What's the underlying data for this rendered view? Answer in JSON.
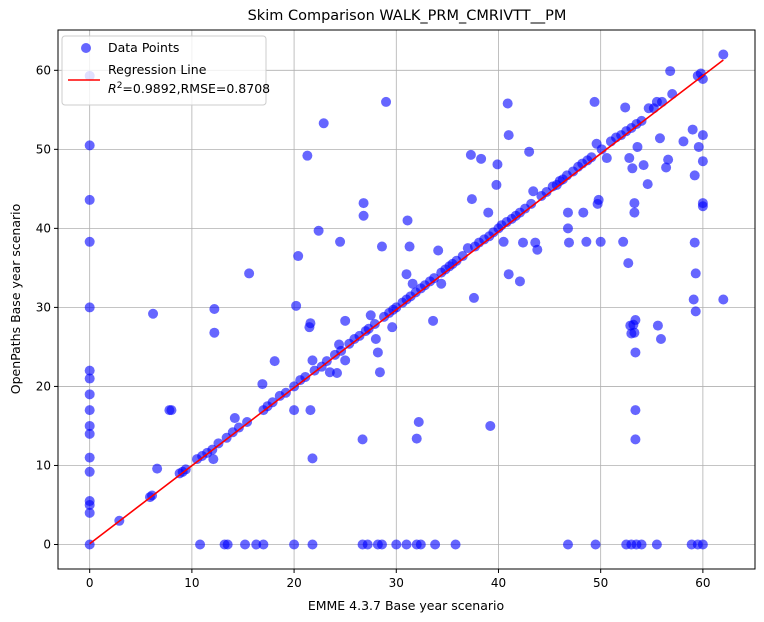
{
  "chart_data": {
    "type": "scatter",
    "title": "Skim Comparison WALK_PRM_CMRIVTT__PM",
    "xlabel": "EMME 4.3.7 Base year scenario",
    "ylabel": "OpenPaths Base year scenario",
    "xlim": [
      -3.1,
      65.1
    ],
    "ylim": [
      -3.1,
      65.1
    ],
    "xticks": [
      0,
      10,
      20,
      30,
      40,
      50,
      60
    ],
    "yticks": [
      0,
      10,
      20,
      30,
      40,
      50,
      60
    ],
    "grid": true,
    "legend": {
      "placement": "top-left",
      "entries": [
        "Data Points",
        "Regression Line"
      ],
      "stats_prefix": "R",
      "stats_sup": "2",
      "stats_suffix": "=0.9892,RMSE=0.8708"
    },
    "series": [
      {
        "name": "Data Points",
        "kind": "scatter",
        "color": "#0000ff",
        "points": [
          [
            0,
            0
          ],
          [
            0,
            4
          ],
          [
            0,
            5
          ],
          [
            0,
            5.5
          ],
          [
            0,
            9.2
          ],
          [
            0,
            11
          ],
          [
            0,
            14
          ],
          [
            0,
            15
          ],
          [
            0,
            17
          ],
          [
            0,
            19
          ],
          [
            0,
            21
          ],
          [
            0,
            22
          ],
          [
            0,
            30
          ],
          [
            0,
            38.3
          ],
          [
            0,
            43.6
          ],
          [
            0,
            50.5
          ],
          [
            0,
            59.3
          ],
          [
            2.9,
            3
          ],
          [
            5.9,
            6
          ],
          [
            6.1,
            6.2
          ],
          [
            6.2,
            29.2
          ],
          [
            6.6,
            9.6
          ],
          [
            7.8,
            17
          ],
          [
            8,
            17
          ],
          [
            8.8,
            9
          ],
          [
            9.1,
            9.2
          ],
          [
            9.4,
            9.5
          ],
          [
            10.5,
            10.8
          ],
          [
            11,
            11.2
          ],
          [
            11.5,
            11.6
          ],
          [
            12,
            12
          ],
          [
            12.1,
            10.8
          ],
          [
            12.2,
            26.8
          ],
          [
            12.2,
            29.8
          ],
          [
            12.6,
            12.8
          ],
          [
            13.4,
            13.5
          ],
          [
            14,
            14.2
          ],
          [
            14.2,
            16
          ],
          [
            14.6,
            14.8
          ],
          [
            15.4,
            15.5
          ],
          [
            15.6,
            34.3
          ],
          [
            16.9,
            20.3
          ],
          [
            17,
            17
          ],
          [
            17.4,
            17.5
          ],
          [
            17.9,
            18
          ],
          [
            18.1,
            23.2
          ],
          [
            18.6,
            18.8
          ],
          [
            19.2,
            19.2
          ],
          [
            20,
            17
          ],
          [
            20,
            20
          ],
          [
            20.2,
            30.2
          ],
          [
            20.4,
            36.5
          ],
          [
            20.6,
            20.8
          ],
          [
            21.1,
            21.2
          ],
          [
            21.3,
            49.2
          ],
          [
            21.5,
            27.5
          ],
          [
            21.6,
            28
          ],
          [
            21.6,
            17
          ],
          [
            21.8,
            23.3
          ],
          [
            21.8,
            10.9
          ],
          [
            22,
            22
          ],
          [
            22.4,
            39.7
          ],
          [
            22.7,
            22.5
          ],
          [
            22.9,
            53.3
          ],
          [
            23.2,
            23.2
          ],
          [
            23.5,
            21.8
          ],
          [
            24,
            24
          ],
          [
            24.2,
            21.7
          ],
          [
            24.4,
            25.3
          ],
          [
            24.5,
            38.3
          ],
          [
            24.6,
            24.5
          ],
          [
            25,
            23.3
          ],
          [
            25,
            28.3
          ],
          [
            25.4,
            25.4
          ],
          [
            25.9,
            26
          ],
          [
            26.4,
            26.4
          ],
          [
            26.7,
            13.3
          ],
          [
            26.8,
            41.6
          ],
          [
            26.8,
            43.2
          ],
          [
            27,
            27
          ],
          [
            27.3,
            27.3
          ],
          [
            27.5,
            29
          ],
          [
            27.9,
            27.9
          ],
          [
            28,
            26
          ],
          [
            28.2,
            24.3
          ],
          [
            28.4,
            21.8
          ],
          [
            28.6,
            37.7
          ],
          [
            28.8,
            28.8
          ],
          [
            29,
            56
          ],
          [
            29.3,
            29.3
          ],
          [
            29.7,
            29.7
          ],
          [
            29.6,
            27.5
          ],
          [
            30,
            30
          ],
          [
            30.6,
            30.6
          ],
          [
            31,
            31
          ],
          [
            31,
            34.2
          ],
          [
            31.1,
            41
          ],
          [
            31.3,
            37.7
          ],
          [
            31.4,
            31.4
          ],
          [
            31.6,
            33
          ],
          [
            31.9,
            31.9
          ],
          [
            32,
            13.4
          ],
          [
            32.2,
            15.5
          ],
          [
            32.4,
            32.4
          ],
          [
            32.8,
            32.8
          ],
          [
            33.3,
            33.3
          ],
          [
            33.6,
            28.3
          ],
          [
            33.7,
            33.7
          ],
          [
            34.1,
            37.2
          ],
          [
            34.4,
            34.4
          ],
          [
            34.8,
            34.8
          ],
          [
            34.4,
            33
          ],
          [
            35.2,
            35.2
          ],
          [
            35.5,
            35.5
          ],
          [
            35.9,
            35.9
          ],
          [
            36.5,
            36.5
          ],
          [
            37,
            37.5
          ],
          [
            37.3,
            49.3
          ],
          [
            37.4,
            43.7
          ],
          [
            37.6,
            31.2
          ],
          [
            37.7,
            37.7
          ],
          [
            38.1,
            38.2
          ],
          [
            38.3,
            48.8
          ],
          [
            38.6,
            38.6
          ],
          [
            39,
            42
          ],
          [
            39.1,
            39
          ],
          [
            39.2,
            15
          ],
          [
            39.5,
            39.5
          ],
          [
            39.8,
            45.5
          ],
          [
            39.9,
            48.1
          ],
          [
            40,
            40
          ],
          [
            40.3,
            40.4
          ],
          [
            40.5,
            38.3
          ],
          [
            40.8,
            40.8
          ],
          [
            40.9,
            55.8
          ],
          [
            41,
            51.8
          ],
          [
            41,
            34.2
          ],
          [
            41.3,
            41.2
          ],
          [
            41.7,
            41.6
          ],
          [
            42.1,
            42
          ],
          [
            42.1,
            33.3
          ],
          [
            42.4,
            38.2
          ],
          [
            42.6,
            42.5
          ],
          [
            43,
            49.7
          ],
          [
            43.2,
            43.1
          ],
          [
            43.4,
            44.7
          ],
          [
            43.6,
            38.2
          ],
          [
            43.8,
            37.3
          ],
          [
            44.2,
            44.1
          ],
          [
            44.7,
            44.6
          ],
          [
            45.3,
            45.3
          ],
          [
            45.7,
            45.5
          ],
          [
            46,
            46
          ],
          [
            46.3,
            46.2
          ],
          [
            46.7,
            46.7
          ],
          [
            46.8,
            42
          ],
          [
            46.8,
            40
          ],
          [
            46.9,
            38.2
          ],
          [
            47.3,
            47.2
          ],
          [
            47.8,
            47.8
          ],
          [
            48.2,
            48.2
          ],
          [
            48.3,
            42
          ],
          [
            48.7,
            48.6
          ],
          [
            48.6,
            38.3
          ],
          [
            49.1,
            49
          ],
          [
            49.4,
            56
          ],
          [
            49.6,
            50.7
          ],
          [
            49.7,
            43.1
          ],
          [
            49.8,
            43.6
          ],
          [
            50,
            38.3
          ],
          [
            50.1,
            50
          ],
          [
            50.6,
            48.9
          ],
          [
            51,
            51
          ],
          [
            51.5,
            51.5
          ],
          [
            52,
            51.8
          ],
          [
            52.2,
            38.3
          ],
          [
            52.4,
            55.3
          ],
          [
            52.5,
            52.3
          ],
          [
            52.7,
            35.6
          ],
          [
            52.8,
            48.9
          ],
          [
            52.9,
            27.7
          ],
          [
            53,
            52.7
          ],
          [
            53,
            26.7
          ],
          [
            53.1,
            47.6
          ],
          [
            53.2,
            27.8
          ],
          [
            53.3,
            26.8
          ],
          [
            53.3,
            42
          ],
          [
            53.3,
            43.2
          ],
          [
            53.4,
            13.3
          ],
          [
            53.4,
            17
          ],
          [
            53.4,
            24.3
          ],
          [
            53.4,
            28.4
          ],
          [
            53.5,
            53.2
          ],
          [
            53.6,
            50.3
          ],
          [
            54,
            53.6
          ],
          [
            54.2,
            48
          ],
          [
            54.6,
            45.6
          ],
          [
            54.7,
            55.2
          ],
          [
            55.2,
            55.2
          ],
          [
            55.5,
            56
          ],
          [
            55.6,
            27.7
          ],
          [
            55.8,
            51.4
          ],
          [
            55.9,
            26
          ],
          [
            56,
            56
          ],
          [
            56.4,
            47.7
          ],
          [
            56.6,
            48.7
          ],
          [
            56.8,
            59.9
          ],
          [
            57,
            57
          ],
          [
            58.1,
            51
          ],
          [
            59,
            52.5
          ],
          [
            59.1,
            31
          ],
          [
            59.2,
            46.7
          ],
          [
            59.2,
            38.2
          ],
          [
            59.3,
            34.3
          ],
          [
            59.3,
            29.5
          ],
          [
            59.5,
            59.3
          ],
          [
            59.6,
            50.3
          ],
          [
            59.8,
            59.6
          ],
          [
            60,
            51.8
          ],
          [
            60,
            48.5
          ],
          [
            60,
            43.2
          ],
          [
            60,
            42.8
          ],
          [
            60,
            58.9
          ],
          [
            62,
            62
          ],
          [
            62,
            31
          ],
          [
            10.8,
            0
          ],
          [
            13.2,
            0
          ],
          [
            13.5,
            0
          ],
          [
            15.2,
            0
          ],
          [
            16.3,
            0
          ],
          [
            17,
            0
          ],
          [
            20,
            0
          ],
          [
            21.8,
            0
          ],
          [
            26.7,
            0
          ],
          [
            27.2,
            0
          ],
          [
            28.2,
            0
          ],
          [
            28.6,
            0
          ],
          [
            30,
            0
          ],
          [
            31,
            0
          ],
          [
            32,
            0
          ],
          [
            32.4,
            0
          ],
          [
            33.8,
            0
          ],
          [
            35.8,
            0
          ],
          [
            46.8,
            0
          ],
          [
            49.5,
            0
          ],
          [
            52.5,
            0
          ],
          [
            53,
            0
          ],
          [
            53.5,
            0
          ],
          [
            54,
            0
          ],
          [
            55.5,
            0
          ],
          [
            58.9,
            0
          ],
          [
            59.5,
            0
          ],
          [
            60,
            0
          ]
        ]
      },
      {
        "name": "Regression Line",
        "kind": "line",
        "color": "#ff0000",
        "x": [
          0,
          62
        ],
        "y": [
          0.1,
          61.3
        ]
      }
    ]
  }
}
